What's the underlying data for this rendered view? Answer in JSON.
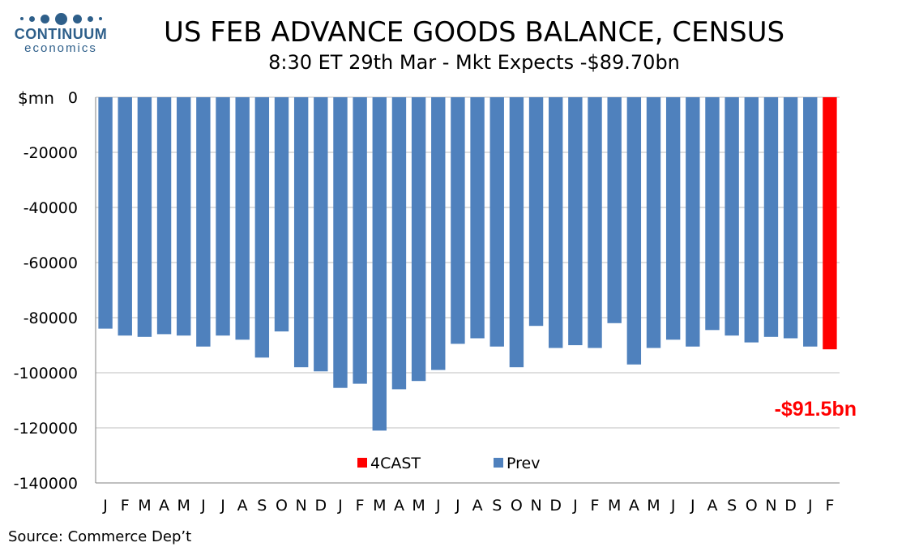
{
  "logo": {
    "name": "CONTINUUM",
    "sub": "economics"
  },
  "source": "Source: Commerce Dep’t",
  "colors": {
    "prev": "#4f81bd",
    "forecast": "#ff0000",
    "grid": "#bfbfbf"
  },
  "chart_data": {
    "type": "bar",
    "title": "US FEB ADVANCE GOODS BALANCE, CENSUS",
    "subtitle": "8:30 ET 29th Mar - Mkt Expects -$89.70bn",
    "ylabel": "$mn",
    "ylim": [
      -140000,
      0
    ],
    "yticks": [
      0,
      -20000,
      -40000,
      -60000,
      -80000,
      -100000,
      -120000,
      -140000
    ],
    "grid": true,
    "legend": "bottom-center",
    "categories": [
      "J",
      "F",
      "M",
      "A",
      "M",
      "J",
      "J",
      "A",
      "S",
      "O",
      "N",
      "D",
      "J",
      "F",
      "M",
      "A",
      "M",
      "J",
      "J",
      "A",
      "S",
      "O",
      "N",
      "D",
      "J",
      "F",
      "M",
      "A",
      "M",
      "J",
      "J",
      "A",
      "S",
      "O",
      "N",
      "D",
      "J",
      "F"
    ],
    "series": [
      {
        "name": "4CAST",
        "color": "#ff0000",
        "values": [
          null,
          null,
          null,
          null,
          null,
          null,
          null,
          null,
          null,
          null,
          null,
          null,
          null,
          null,
          null,
          null,
          null,
          null,
          null,
          null,
          null,
          null,
          null,
          null,
          null,
          null,
          null,
          null,
          null,
          null,
          null,
          null,
          null,
          null,
          null,
          null,
          null,
          -91500
        ]
      },
      {
        "name": "Prev",
        "color": "#4f81bd",
        "values": [
          -84000,
          -86500,
          -87000,
          -86000,
          -86500,
          -90500,
          -86500,
          -88000,
          -94500,
          -85000,
          -98000,
          -99500,
          -105500,
          -104000,
          -121000,
          -106000,
          -103000,
          -99000,
          -89500,
          -87500,
          -90500,
          -98000,
          -83000,
          -91000,
          -90000,
          -91000,
          -82000,
          -97000,
          -91000,
          -88000,
          -90500,
          -84500,
          -86500,
          -89000,
          -87000,
          -87500,
          -90500,
          null
        ]
      }
    ],
    "annotation": "-$91.5bn"
  }
}
